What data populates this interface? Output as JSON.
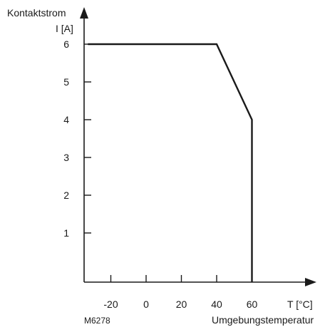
{
  "chart_data": {
    "type": "line",
    "ylabel_line1": "Kontaktstrom",
    "ylabel_line2": "I [A]",
    "xlabel_line1": "T [°C]",
    "xlabel_line2": "Umgebungstemperatur",
    "figure_code": "M6278",
    "x_ticks": [
      "-20",
      "0",
      "20",
      "40",
      "60"
    ],
    "y_ticks": [
      "1",
      "2",
      "3",
      "4",
      "5",
      "6"
    ],
    "xlim": [
      -33,
      90
    ],
    "ylim": [
      -0.3,
      7.2
    ],
    "series": [
      {
        "x": [
          -33,
          40,
          60,
          60
        ],
        "y": [
          6,
          6,
          4,
          -0.3
        ]
      }
    ]
  }
}
